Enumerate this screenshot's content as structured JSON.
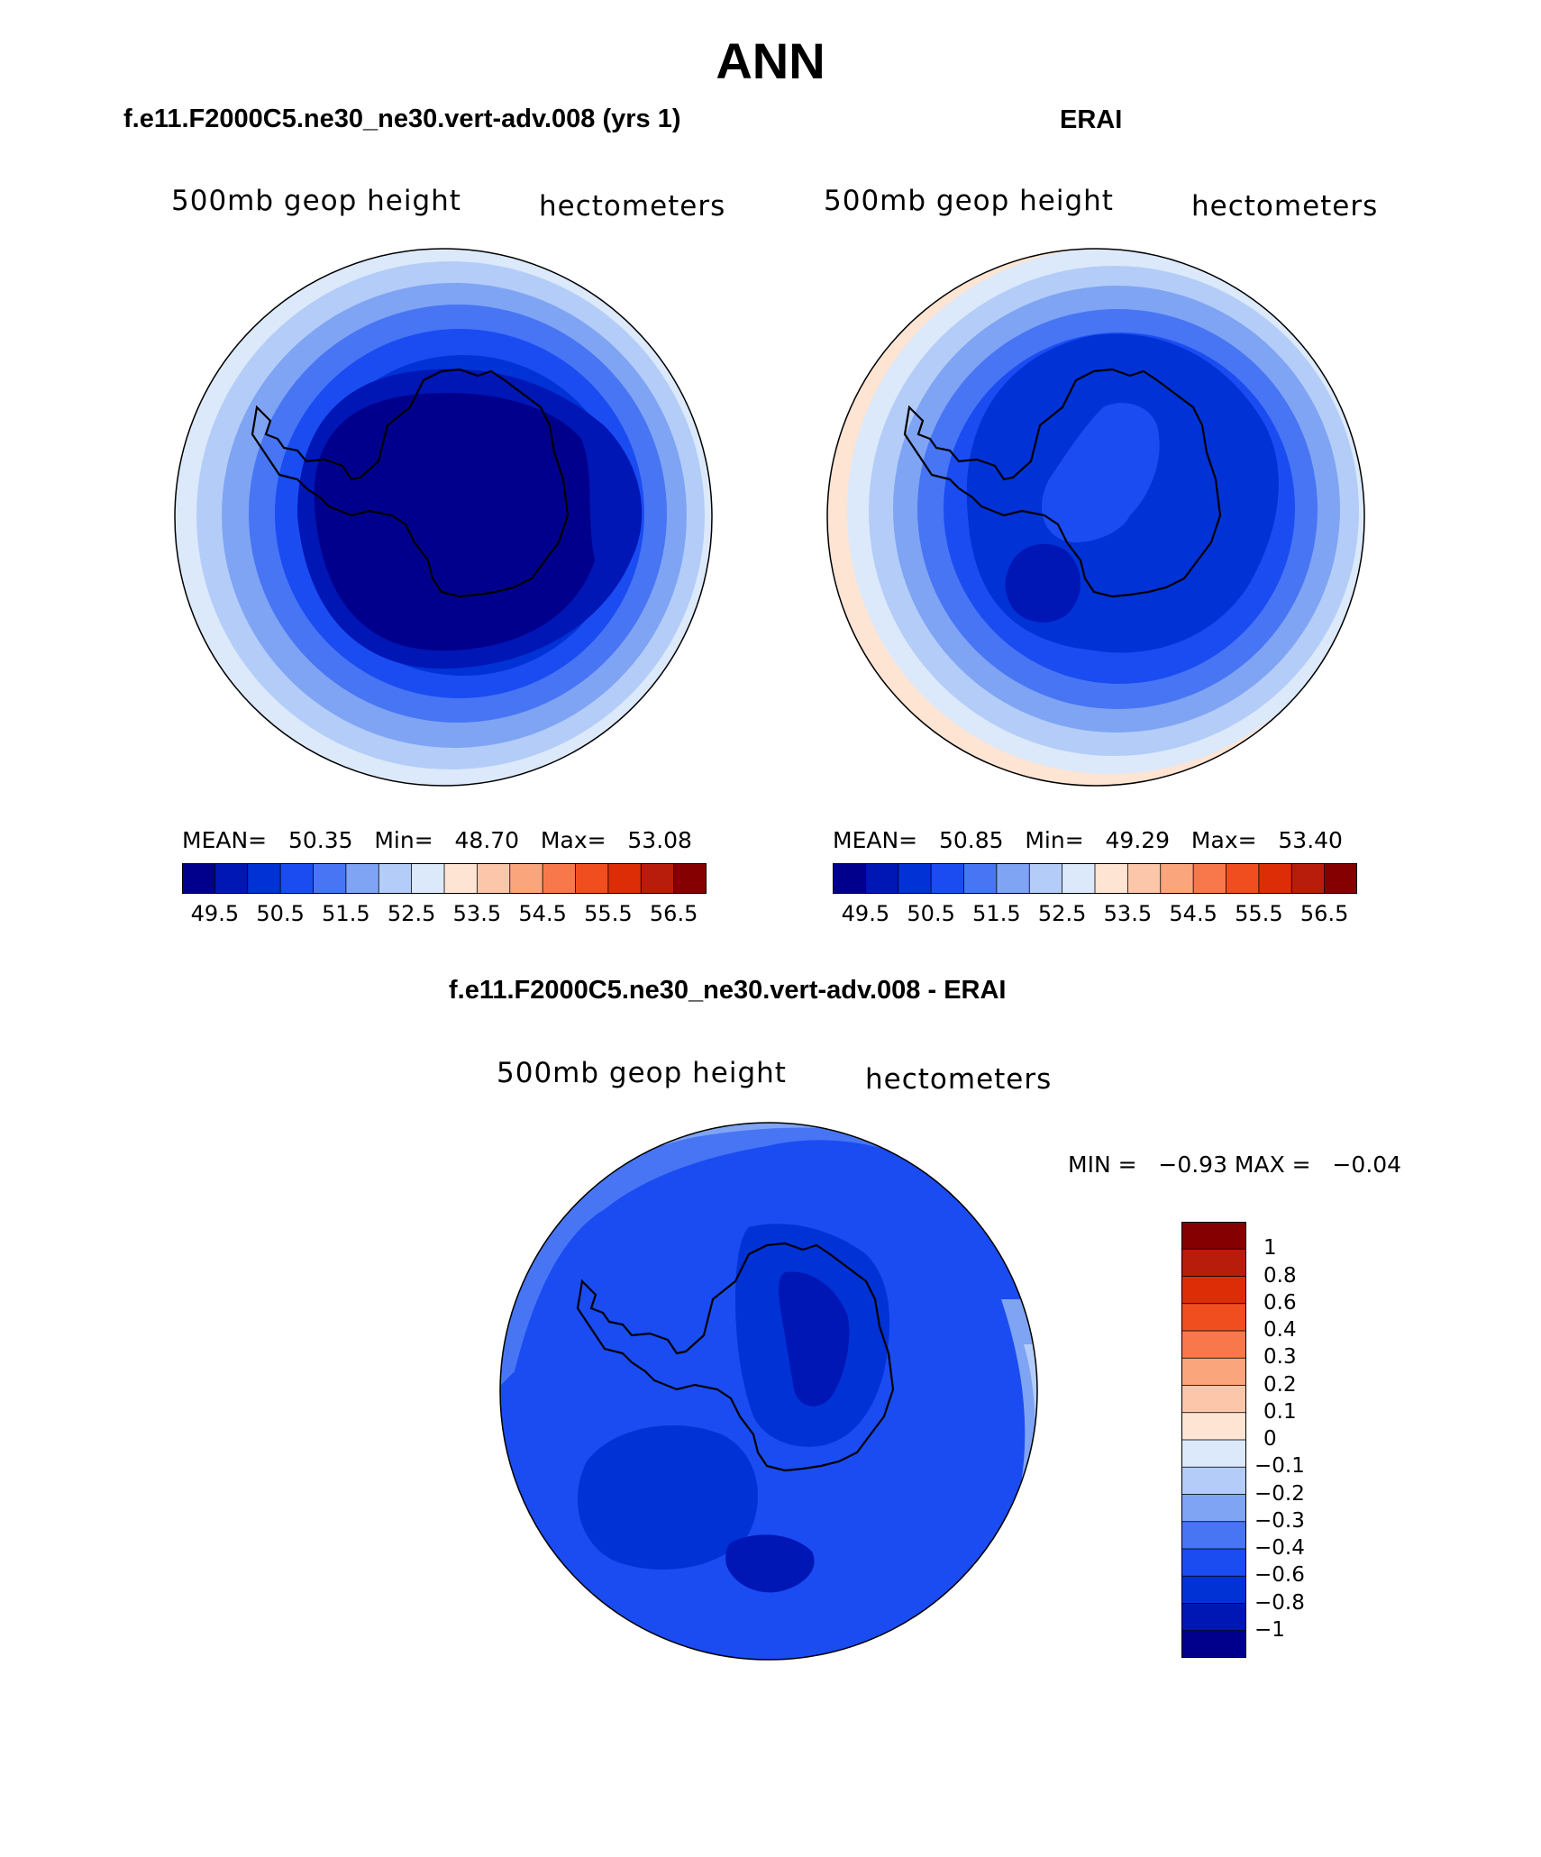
{
  "page_title": "ANN",
  "colorbar_colors": [
    "#00008d",
    "#0016b5",
    "#0032d6",
    "#1a4cf2",
    "#4775f4",
    "#7fa4f4",
    "#b3cdf8",
    "#dce9fb",
    "#fde4d3",
    "#fcc6ab",
    "#fba57d",
    "#f8784b",
    "#f04e1f",
    "#dc2d06",
    "#b81c0a",
    "#850000"
  ],
  "panels": {
    "model": {
      "title": "f.e11.F2000C5.ne30_ne30.vert-adv.008 (yrs 1)",
      "left_label": "500mb geop height",
      "right_label": "hectometers",
      "stats": "MEAN=   50.35   Min=   48.70   Max=   53.08",
      "colorbar_ticks": [
        "49.5",
        "50.5",
        "51.5",
        "52.5",
        "53.5",
        "54.5",
        "55.5",
        "56.5"
      ]
    },
    "obs": {
      "title": "ERAI",
      "left_label": "500mb geop height",
      "right_label": "hectometers",
      "stats": "MEAN=   50.85   Min=   49.29   Max=   53.40",
      "colorbar_ticks": [
        "49.5",
        "50.5",
        "51.5",
        "52.5",
        "53.5",
        "54.5",
        "55.5",
        "56.5"
      ]
    },
    "diff": {
      "title": "f.e11.F2000C5.ne30_ne30.vert-adv.008 - ERAI",
      "left_label": "500mb geop height",
      "right_label": "hectometers",
      "stats": "MIN =   −0.93 MAX =   −0.04",
      "colorbar_ticks": [
        "1",
        "0.8",
        "0.6",
        "0.4",
        "0.3",
        "0.2",
        "0.1",
        "0",
        "−0.1",
        "−0.2",
        "−0.3",
        "−0.4",
        "−0.6",
        "−0.8",
        "−1"
      ],
      "colorbar_colors": [
        "#850000",
        "#b81c0a",
        "#dc2d06",
        "#f04e1f",
        "#f8784b",
        "#fba57d",
        "#fcc6ab",
        "#fde4d3",
        "#dce9fb",
        "#b3cdf8",
        "#7fa4f4",
        "#4775f4",
        "#1a4cf2",
        "#0032d6",
        "#0016b5",
        "#00008d"
      ]
    }
  }
}
